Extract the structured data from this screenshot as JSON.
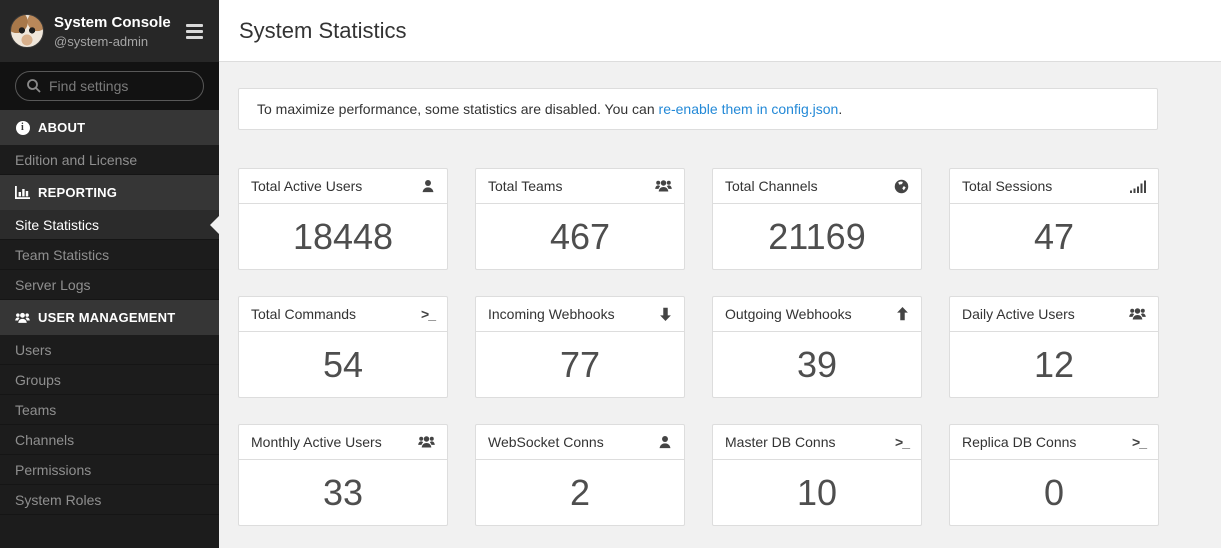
{
  "colors": {
    "link": "#2389d7",
    "sidebar_bg": "#1c1c1c",
    "sidebar_section_bg": "#363636",
    "content_bg": "#f1f1f1",
    "stat_value": "#4e4e4e"
  },
  "sidebar": {
    "header": {
      "title": "System Console",
      "subtitle": "@system-admin"
    },
    "search": {
      "placeholder": "Find settings"
    },
    "sections": [
      {
        "label": "ABOUT",
        "icon": "info-icon",
        "items": [
          {
            "label": "Edition and License",
            "active": false
          }
        ]
      },
      {
        "label": "REPORTING",
        "icon": "bar-chart-icon",
        "items": [
          {
            "label": "Site Statistics",
            "active": true
          },
          {
            "label": "Team Statistics",
            "active": false
          },
          {
            "label": "Server Logs",
            "active": false
          }
        ]
      },
      {
        "label": "USER MANAGEMENT",
        "icon": "users-icon",
        "items": [
          {
            "label": "Users",
            "active": false
          },
          {
            "label": "Groups",
            "active": false
          },
          {
            "label": "Teams",
            "active": false
          },
          {
            "label": "Channels",
            "active": false
          },
          {
            "label": "Permissions",
            "active": false
          },
          {
            "label": "System Roles",
            "active": false
          }
        ]
      }
    ]
  },
  "main": {
    "title": "System Statistics",
    "banner": {
      "text_before_link": "To maximize performance, some statistics are disabled. You can ",
      "link_text": "re-enable them in config.json",
      "text_after_link": "."
    },
    "stats": [
      {
        "label": "Total Active Users",
        "icon": "user-icon",
        "value": "18448"
      },
      {
        "label": "Total Teams",
        "icon": "users-icon",
        "value": "467"
      },
      {
        "label": "Total Channels",
        "icon": "globe-icon",
        "value": "21169"
      },
      {
        "label": "Total Sessions",
        "icon": "signal-icon",
        "value": "47"
      },
      {
        "label": "Total Commands",
        "icon": "terminal-icon",
        "value": "54"
      },
      {
        "label": "Incoming Webhooks",
        "icon": "arrow-down-icon",
        "value": "77"
      },
      {
        "label": "Outgoing Webhooks",
        "icon": "arrow-up-icon",
        "value": "39"
      },
      {
        "label": "Daily Active Users",
        "icon": "users-icon",
        "value": "12"
      },
      {
        "label": "Monthly Active Users",
        "icon": "users-icon",
        "value": "33"
      },
      {
        "label": "WebSocket Conns",
        "icon": "user-icon",
        "value": "2"
      },
      {
        "label": "Master DB Conns",
        "icon": "terminal-icon",
        "value": "10"
      },
      {
        "label": "Replica DB Conns",
        "icon": "terminal-icon",
        "value": "0"
      }
    ]
  }
}
